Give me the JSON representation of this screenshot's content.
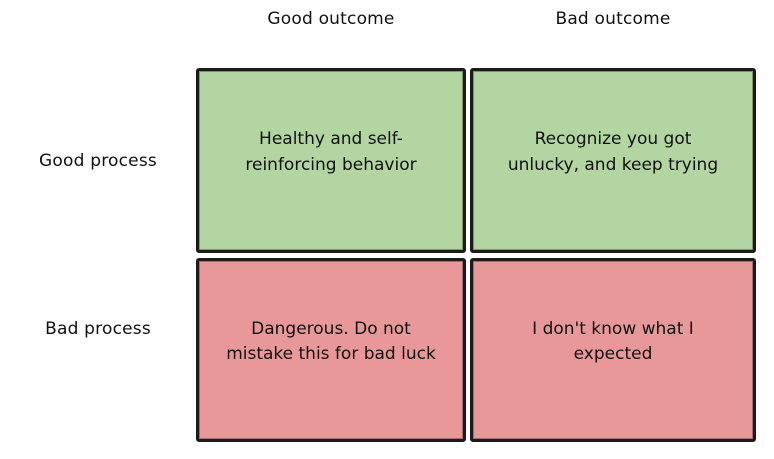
{
  "matrix": {
    "column_headers": [
      "Good outcome",
      "Bad outcome"
    ],
    "row_headers": [
      "Good process",
      "Bad process"
    ],
    "cells": [
      {
        "row": "Good process",
        "column": "Good outcome",
        "tone": "good",
        "text": "Healthy and self-\nreinforcing behavior"
      },
      {
        "row": "Good process",
        "column": "Bad outcome",
        "tone": "good",
        "text": "Recognize you got\nunlucky, and keep trying"
      },
      {
        "row": "Bad process",
        "column": "Good outcome",
        "tone": "bad",
        "text": "Dangerous. Do not\nmistake this for bad luck"
      },
      {
        "row": "Bad process",
        "column": "Bad outcome",
        "tone": "bad",
        "text": "I don't know what I\nexpected"
      }
    ],
    "colors": {
      "good": "#b2d5a1",
      "bad": "#e99899",
      "border": "#1b1b1b",
      "text": "#111111",
      "background": "#ffffff"
    }
  }
}
